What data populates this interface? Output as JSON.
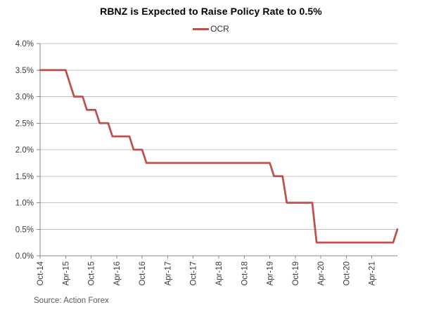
{
  "chart_data": {
    "type": "line",
    "title": "RBNZ is Expected to Raise Policy Rate to 0.5%",
    "legend": {
      "position": "top",
      "entries": [
        {
          "label": "OCR",
          "color": "#C0504D"
        }
      ]
    },
    "x_axis": {
      "tick_labels": [
        "Oct-14",
        "Apr-15",
        "Oct-15",
        "Apr-16",
        "Oct-16",
        "Apr-17",
        "Oct-17",
        "Apr-18",
        "Oct-18",
        "Apr-19",
        "Oct-19",
        "Apr-20",
        "Oct-20",
        "Apr-21"
      ],
      "tick_every": 6,
      "label_rotation_deg": -90
    },
    "y_axis": {
      "tick_labels": [
        "0.0%",
        "0.5%",
        "1.0%",
        "1.5%",
        "2.0%",
        "2.5%",
        "3.0%",
        "3.5%",
        "4.0%"
      ],
      "min": 0,
      "max": 4,
      "step": 0.5,
      "format": "percent"
    },
    "grid": true,
    "series": [
      {
        "name": "OCR",
        "color": "#C0504D",
        "frequency": "monthly",
        "x_start": "Oct-14",
        "x_end": "Oct-21",
        "values": [
          3.5,
          3.5,
          3.5,
          3.5,
          3.5,
          3.5,
          3.5,
          3.25,
          3.0,
          3.0,
          3.0,
          2.75,
          2.75,
          2.75,
          2.5,
          2.5,
          2.5,
          2.25,
          2.25,
          2.25,
          2.25,
          2.25,
          2.0,
          2.0,
          2.0,
          1.75,
          1.75,
          1.75,
          1.75,
          1.75,
          1.75,
          1.75,
          1.75,
          1.75,
          1.75,
          1.75,
          1.75,
          1.75,
          1.75,
          1.75,
          1.75,
          1.75,
          1.75,
          1.75,
          1.75,
          1.75,
          1.75,
          1.75,
          1.75,
          1.75,
          1.75,
          1.75,
          1.75,
          1.75,
          1.75,
          1.5,
          1.5,
          1.5,
          1.0,
          1.0,
          1.0,
          1.0,
          1.0,
          1.0,
          1.0,
          0.25,
          0.25,
          0.25,
          0.25,
          0.25,
          0.25,
          0.25,
          0.25,
          0.25,
          0.25,
          0.25,
          0.25,
          0.25,
          0.25,
          0.25,
          0.25,
          0.25,
          0.25,
          0.25,
          0.5
        ]
      }
    ],
    "source": "Source: Action Forex",
    "colors": {
      "line": "#C0504D",
      "gridline": "#c3c3c3",
      "axis": "#878787",
      "tick": "#878787",
      "label": "#3b3b3b",
      "title": "#000000",
      "source_text": "#595959",
      "background": "#ffffff"
    }
  }
}
